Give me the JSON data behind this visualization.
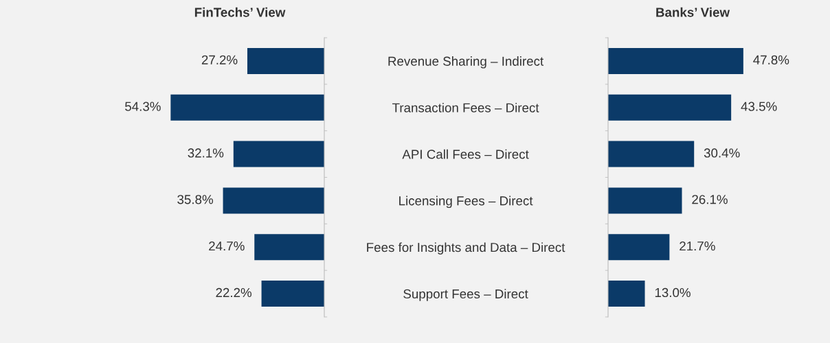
{
  "chart_data": [
    {
      "type": "bar",
      "orientation": "horizontal",
      "title": "FinTechs’ View",
      "categories": [
        "Revenue Sharing – Indirect",
        "Transaction Fees – Direct",
        "API Call Fees – Direct",
        "Licensing Fees – Direct",
        "Fees for Insights and Data – Direct",
        "Support Fees – Direct"
      ],
      "values": [
        27.2,
        54.3,
        32.1,
        35.8,
        24.7,
        22.2
      ],
      "value_labels": [
        "27.2%",
        "54.3%",
        "32.1%",
        "35.8%",
        "24.7%",
        "22.2%"
      ],
      "color": "#0b3a68",
      "tick_labels": "y"
    },
    {
      "type": "bar",
      "orientation": "horizontal",
      "title": "Banks’ View",
      "categories": [
        null,
        null,
        null,
        null,
        null,
        null
      ],
      "values": [
        47.8,
        43.5,
        30.4,
        26.1,
        21.7,
        13.0
      ],
      "value_labels": [
        "47.8%",
        "43.5%",
        "30.4%",
        "26.1%",
        "21.7%",
        "13.0%"
      ],
      "color": "#0b3a68"
    }
  ]
}
